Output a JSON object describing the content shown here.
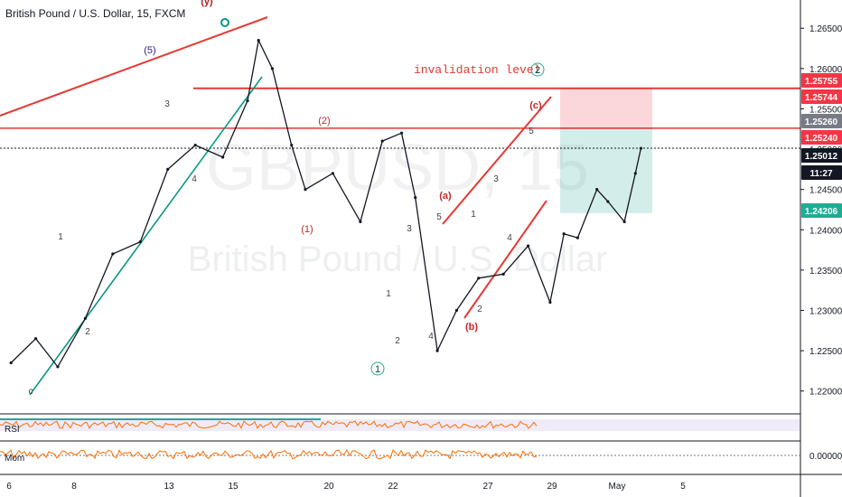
{
  "window": {
    "symbol_title": "British Pound / U.S. Dollar, 15, FXCM",
    "watermark_symbol": "GBPUSD, 15",
    "watermark_name": "British Pound / U.S. Dollar"
  },
  "price_axis": {
    "ticks": [
      "1.26500",
      "1.26000",
      "1.25500",
      "1.25000",
      "1.24500",
      "1.24000",
      "1.23500",
      "1.23000",
      "1.22500",
      "1.22000"
    ],
    "badges": [
      {
        "label": "1.25755",
        "color": "#f23645"
      },
      {
        "label": "1.25744",
        "color": "#f23645"
      },
      {
        "label": "1.25260",
        "color": "#787b86"
      },
      {
        "label": "1.25240",
        "color": "#f23645"
      },
      {
        "label": "1.25012",
        "color": "#131722"
      },
      {
        "label": "11:27",
        "color": "#131722"
      },
      {
        "label": "1.24206",
        "color": "#22ab94"
      }
    ]
  },
  "time_axis": {
    "ticks": [
      "6",
      "8",
      "13",
      "15",
      "20",
      "22",
      "27",
      "29",
      "May",
      "5"
    ]
  },
  "indicators": {
    "rsi_label": "RSI",
    "mom_label": "Mom",
    "mom_axis_tick": "0.00000"
  },
  "annotations": {
    "invalidation_text": "invalidation level",
    "invalidation_circle": "2",
    "wave_labels": [
      {
        "text": "(y)",
        "color": "#b71c1c"
      },
      {
        "text": "(5)",
        "color": "#311b92"
      },
      {
        "text": "3",
        "color": "#424242"
      },
      {
        "text": "4",
        "color": "#424242"
      },
      {
        "text": "1",
        "color": "#424242"
      },
      {
        "text": "2",
        "color": "#424242"
      },
      {
        "text": "c",
        "color": "#424242"
      },
      {
        "text": "(1)",
        "color": "#c62828"
      },
      {
        "text": "(2)",
        "color": "#c62828"
      },
      {
        "text": "1",
        "color": "#424242"
      },
      {
        "text": "2",
        "color": "#424242"
      },
      {
        "text": "3",
        "color": "#424242"
      },
      {
        "text": "4",
        "color": "#424242"
      },
      {
        "text": "5",
        "color": "#424242"
      },
      {
        "text": "(a)",
        "color": "#c62828"
      },
      {
        "text": "(b)",
        "color": "#c62828"
      },
      {
        "text": "(c)",
        "color": "#c62828"
      },
      {
        "text": "1",
        "color": "#424242"
      },
      {
        "text": "2",
        "color": "#424242"
      },
      {
        "text": "3",
        "color": "#424242"
      },
      {
        "text": "4",
        "color": "#424242"
      },
      {
        "text": "5",
        "color": "#424242"
      }
    ],
    "circle_label": "1"
  },
  "chart_data": {
    "type": "line",
    "title": "British Pound / U.S. Dollar, 15, FXCM",
    "xlabel": "",
    "ylabel": "",
    "x": [
      5.6,
      6.5,
      7.3,
      8.3,
      9.3,
      10.3,
      11.3,
      12.3,
      13.3,
      14.2,
      14.6,
      15.1,
      15.8,
      16.3,
      17.3,
      18.3,
      19.1,
      19.8,
      20.3,
      21.1,
      21.8,
      22.6,
      23.5,
      24.4,
      25.2,
      25.7,
      26.2,
      26.9,
      27.3,
      27.9,
      28.3,
      28.5
    ],
    "values": [
      1.2235,
      1.2265,
      1.223,
      1.229,
      1.237,
      1.2385,
      1.2475,
      1.2505,
      1.249,
      1.256,
      1.2635,
      1.26,
      1.2505,
      1.245,
      1.247,
      1.241,
      1.251,
      1.252,
      1.244,
      1.225,
      1.23,
      1.234,
      1.2345,
      1.238,
      1.231,
      1.2395,
      1.239,
      1.245,
      1.2435,
      1.241,
      1.247,
      1.2501
    ],
    "xlim": [
      5.2,
      34.3
    ],
    "ylim": [
      1.2175,
      1.2685
    ],
    "last_price": 1.25012,
    "trade_zone": {
      "stop": 1.25755,
      "entry": 1.2526,
      "target": 1.24206
    },
    "horizontal_levels": [
      1.25755,
      1.2526
    ],
    "invalidation_level": 1.25755,
    "grid": false,
    "legend": "none"
  }
}
